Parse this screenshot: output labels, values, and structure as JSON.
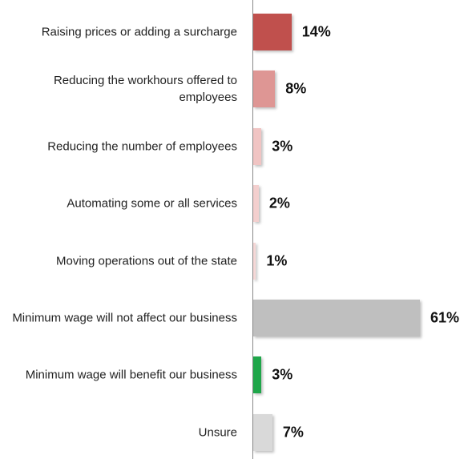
{
  "chart_data": {
    "type": "bar",
    "orientation": "horizontal",
    "categories": [
      "Raising prices or adding a surcharge",
      "Reducing the workhours offered to employees",
      "Reducing the number of employees",
      "Automating some or all services",
      "Moving operations out of the state",
      "Minimum wage will not affect our business",
      "Minimum wage will benefit our business",
      "Unsure"
    ],
    "values": [
      14,
      8,
      3,
      2,
      1,
      61,
      3,
      7
    ],
    "value_labels": [
      "14%",
      "8%",
      "3%",
      "2%",
      "1%",
      "61%",
      "3%",
      "7%"
    ],
    "colors": [
      "#c0504d",
      "#de9694",
      "#f0c4c3",
      "#f3cfce",
      "#f5d7d6",
      "#bfbfbf",
      "#1fa64a",
      "#d9d9d9"
    ]
  }
}
